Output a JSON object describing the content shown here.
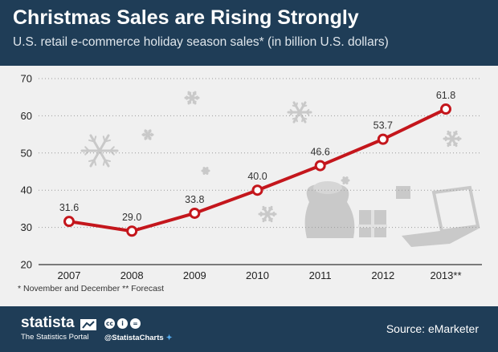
{
  "header": {
    "title": "Christmas Sales are Rising Strongly",
    "subtitle": "U.S. retail e-commerce holiday season sales* (in billion U.S. dollars)"
  },
  "footnote": "* November and December ** Forecast",
  "footer": {
    "brand": "statista",
    "tagline": "The Statistics Portal",
    "license_icons": [
      "cc",
      "i",
      "="
    ],
    "handle": "@StatistaCharts",
    "twitter_icon": "twitter-bird-icon",
    "source": "Source: eMarketer"
  },
  "colors": {
    "header_bg": "#1f3d57",
    "background": "#f0f0f0",
    "line": "#c4161c",
    "decoration": "#c9c9c9"
  },
  "decorations": [
    "snowflake-icon",
    "gift-sack-icon",
    "gift-box-icon",
    "laptop-icon"
  ],
  "chart_data": {
    "type": "line",
    "categories": [
      "2007",
      "2008",
      "2009",
      "2010",
      "2011",
      "2012",
      "2013**"
    ],
    "values": [
      31.6,
      29.0,
      33.8,
      40.0,
      46.6,
      53.7,
      61.8
    ],
    "data_labels": [
      "31.6",
      "29.0",
      "33.8",
      "40.0",
      "46.6",
      "53.7",
      "61.8"
    ],
    "ylim": [
      20,
      70
    ],
    "yticks": [
      "20",
      "30",
      "40",
      "50",
      "60",
      "70"
    ],
    "grid": true,
    "legend": "none"
  }
}
